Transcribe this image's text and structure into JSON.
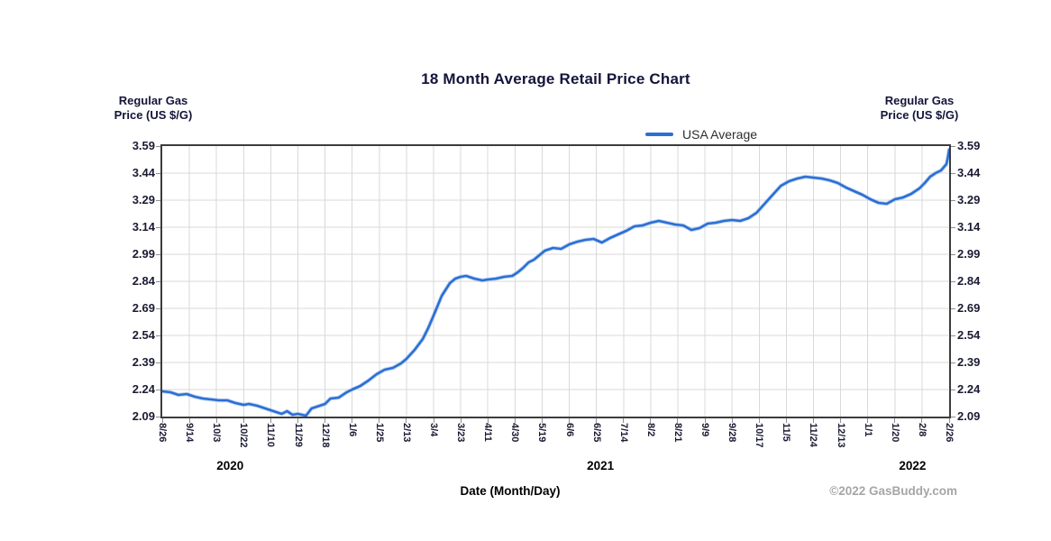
{
  "header": {
    "title": "18 Month Average Retail Price Chart"
  },
  "axis_titles": {
    "left_line1": "Regular Gas",
    "left_line2": "Price (US $/G)",
    "right_line1": "Regular Gas",
    "right_line2": "Price (US $/G)"
  },
  "legend": {
    "label": "USA Average"
  },
  "footer": {
    "x_axis_title": "Date (Month/Day)",
    "copyright": "©2022 GasBuddy.com"
  },
  "colors": {
    "line": "#2b6fd4",
    "line_halo": "#93b6ea",
    "grid": "#d9d9d9",
    "border": "#3c3c3c",
    "stub": "#8f8f8f",
    "title_text": "#14143a",
    "tick_text": "#1a1a33",
    "year_text": "#000000",
    "copyright_text": "#a6a6a6"
  },
  "chart_data": {
    "type": "line",
    "title": "18 Month Average Retail Price Chart",
    "xlabel": "Date (Month/Day)",
    "ylabel": "Regular Gas Price (US $/G)",
    "ylim": [
      2.09,
      3.59
    ],
    "y_tick_step": 0.15,
    "grid": true,
    "legend_position": "top-right",
    "y_ticks": [
      "3.59",
      "3.44",
      "3.29",
      "3.14",
      "2.99",
      "2.84",
      "2.69",
      "2.54",
      "2.39",
      "2.24",
      "2.09"
    ],
    "x_ticks": [
      "8/26",
      "9/14",
      "10/3",
      "10/22",
      "11/10",
      "11/29",
      "12/18",
      "1/6",
      "1/25",
      "2/13",
      "3/4",
      "3/23",
      "4/11",
      "4/30",
      "5/19",
      "6/6",
      "6/25",
      "7/14",
      "8/2",
      "8/21",
      "9/9",
      "9/28",
      "10/17",
      "11/5",
      "11/24",
      "12/13",
      "1/1",
      "1/20",
      "2/8",
      "2/26"
    ],
    "years": [
      {
        "label": "2020",
        "center_tick": 2.5
      },
      {
        "label": "2021",
        "center_tick": 16.15
      },
      {
        "label": "2022",
        "center_tick": 27.65
      }
    ],
    "series": [
      {
        "name": "USA Average",
        "color": "#2b6fd4",
        "points": [
          [
            0.0,
            2.23
          ],
          [
            0.3,
            2.225
          ],
          [
            0.6,
            2.21
          ],
          [
            0.9,
            2.215
          ],
          [
            1.2,
            2.2
          ],
          [
            1.5,
            2.19
          ],
          [
            1.8,
            2.185
          ],
          [
            2.1,
            2.18
          ],
          [
            2.4,
            2.18
          ],
          [
            2.7,
            2.165
          ],
          [
            3.0,
            2.155
          ],
          [
            3.2,
            2.16
          ],
          [
            3.5,
            2.15
          ],
          [
            3.8,
            2.135
          ],
          [
            4.1,
            2.12
          ],
          [
            4.4,
            2.105
          ],
          [
            4.6,
            2.12
          ],
          [
            4.8,
            2.1
          ],
          [
            5.0,
            2.105
          ],
          [
            5.3,
            2.095
          ],
          [
            5.5,
            2.135
          ],
          [
            5.8,
            2.15
          ],
          [
            6.0,
            2.16
          ],
          [
            6.2,
            2.19
          ],
          [
            6.5,
            2.195
          ],
          [
            6.8,
            2.225
          ],
          [
            7.0,
            2.24
          ],
          [
            7.3,
            2.26
          ],
          [
            7.6,
            2.29
          ],
          [
            7.9,
            2.325
          ],
          [
            8.2,
            2.35
          ],
          [
            8.5,
            2.36
          ],
          [
            8.8,
            2.385
          ],
          [
            9.0,
            2.41
          ],
          [
            9.3,
            2.46
          ],
          [
            9.6,
            2.52
          ],
          [
            9.8,
            2.58
          ],
          [
            10.0,
            2.65
          ],
          [
            10.3,
            2.76
          ],
          [
            10.6,
            2.83
          ],
          [
            10.8,
            2.855
          ],
          [
            11.0,
            2.865
          ],
          [
            11.2,
            2.87
          ],
          [
            11.5,
            2.855
          ],
          [
            11.8,
            2.845
          ],
          [
            12.0,
            2.85
          ],
          [
            12.3,
            2.855
          ],
          [
            12.6,
            2.865
          ],
          [
            12.9,
            2.87
          ],
          [
            13.1,
            2.89
          ],
          [
            13.3,
            2.915
          ],
          [
            13.5,
            2.945
          ],
          [
            13.7,
            2.96
          ],
          [
            13.9,
            2.985
          ],
          [
            14.1,
            3.01
          ],
          [
            14.4,
            3.025
          ],
          [
            14.7,
            3.02
          ],
          [
            15.0,
            3.045
          ],
          [
            15.3,
            3.06
          ],
          [
            15.6,
            3.07
          ],
          [
            15.9,
            3.075
          ],
          [
            16.2,
            3.055
          ],
          [
            16.5,
            3.08
          ],
          [
            16.8,
            3.1
          ],
          [
            17.1,
            3.12
          ],
          [
            17.4,
            3.145
          ],
          [
            17.7,
            3.15
          ],
          [
            18.0,
            3.165
          ],
          [
            18.3,
            3.175
          ],
          [
            18.6,
            3.165
          ],
          [
            18.9,
            3.155
          ],
          [
            19.2,
            3.15
          ],
          [
            19.5,
            3.125
          ],
          [
            19.8,
            3.135
          ],
          [
            20.1,
            3.16
          ],
          [
            20.4,
            3.165
          ],
          [
            20.7,
            3.175
          ],
          [
            21.0,
            3.18
          ],
          [
            21.3,
            3.175
          ],
          [
            21.6,
            3.19
          ],
          [
            21.9,
            3.22
          ],
          [
            22.2,
            3.27
          ],
          [
            22.5,
            3.32
          ],
          [
            22.8,
            3.37
          ],
          [
            23.1,
            3.395
          ],
          [
            23.4,
            3.41
          ],
          [
            23.7,
            3.42
          ],
          [
            24.0,
            3.415
          ],
          [
            24.3,
            3.41
          ],
          [
            24.6,
            3.4
          ],
          [
            24.9,
            3.385
          ],
          [
            25.2,
            3.36
          ],
          [
            25.5,
            3.34
          ],
          [
            25.8,
            3.32
          ],
          [
            26.1,
            3.295
          ],
          [
            26.4,
            3.275
          ],
          [
            26.7,
            3.27
          ],
          [
            27.0,
            3.295
          ],
          [
            27.3,
            3.305
          ],
          [
            27.6,
            3.325
          ],
          [
            27.9,
            3.355
          ],
          [
            28.1,
            3.385
          ],
          [
            28.3,
            3.42
          ],
          [
            28.5,
            3.44
          ],
          [
            28.7,
            3.455
          ],
          [
            28.9,
            3.49
          ],
          [
            28.95,
            3.525
          ],
          [
            29.0,
            3.57
          ]
        ]
      }
    ]
  }
}
